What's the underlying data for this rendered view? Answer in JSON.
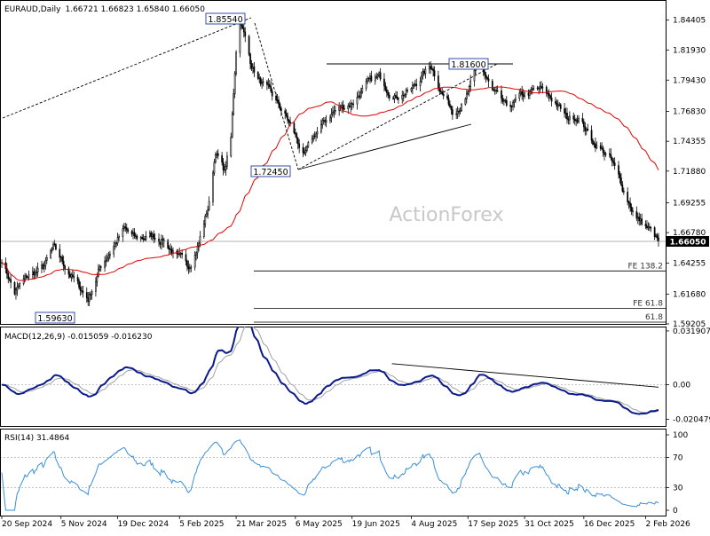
{
  "header": {
    "symbol": "EURAUD,Daily",
    "ohlc": "1.66721 1.66823 1.65840 1.66050"
  },
  "watermark": "ActionForex",
  "colors": {
    "candle": "#000000",
    "ma": "#e00000",
    "macd_line": "#0a1a8c",
    "signal_line": "#a0a0a0",
    "rsi_line": "#3a8fd8",
    "level_line": "#9a9a9a",
    "grid_dotted": "#b0b0b0",
    "axis": "#000000",
    "price_box": "#ffffff"
  },
  "chart_data": [
    {
      "type": "candlestick",
      "title": "EURAUD,Daily",
      "x_tick_labels": [
        "20 Sep 2024",
        "5 Nov 2024",
        "19 Dec 2024",
        "5 Feb 2025",
        "21 Mar 2025",
        "6 May 2025",
        "19 Jun 2025",
        "4 Aug 2025",
        "17 Sep 2025",
        "31 Oct 2025",
        "16 Dec 2025",
        "2 Feb 2026"
      ],
      "y_tick_labels": [
        "1.84405",
        "1.81930",
        "1.79430",
        "1.76830",
        "1.74355",
        "1.71880",
        "1.69255",
        "1.66780",
        "1.64255",
        "1.61680",
        "1.59205"
      ],
      "ylim": [
        1.59205,
        1.86
      ],
      "last_price_label": "1.66050",
      "annotations": [
        {
          "label": "1.85540",
          "value": 1.8554,
          "date": "2025-03-24"
        },
        {
          "label": "1.81600",
          "value": 1.816,
          "date": "2025-09-26"
        },
        {
          "label": "1.72450",
          "value": 1.7245,
          "date": "2025-05-13"
        },
        {
          "label": "1.59630",
          "value": 1.5963,
          "date": "2024-10-30"
        }
      ],
      "levels": [
        {
          "label": "FE 138.2",
          "value": 1.636
        },
        {
          "label": "FE 61.8",
          "value": 1.605
        },
        {
          "label": "61.8",
          "value": 1.5935
        }
      ],
      "close_series": {
        "start": "2024-09-20",
        "step_days": 1,
        "knots": [
          [
            "2024-09-20",
            1.646
          ],
          [
            "2024-09-30",
            1.618
          ],
          [
            "2024-10-10",
            1.631
          ],
          [
            "2024-10-22",
            1.638
          ],
          [
            "2024-10-30",
            1.654
          ],
          [
            "2024-11-08",
            1.64
          ],
          [
            "2024-11-18",
            1.624
          ],
          [
            "2024-11-26",
            1.613
          ],
          [
            "2024-12-05",
            1.638
          ],
          [
            "2024-12-16",
            1.658
          ],
          [
            "2024-12-24",
            1.67
          ],
          [
            "2025-01-02",
            1.662
          ],
          [
            "2025-01-14",
            1.665
          ],
          [
            "2025-01-24",
            1.662
          ],
          [
            "2025-02-04",
            1.646
          ],
          [
            "2025-02-12",
            1.64
          ],
          [
            "2025-02-20",
            1.66
          ],
          [
            "2025-02-28",
            1.692
          ],
          [
            "2025-03-05",
            1.736
          ],
          [
            "2025-03-12",
            1.718
          ],
          [
            "2025-03-17",
            1.745
          ],
          [
            "2025-03-21",
            1.82
          ],
          [
            "2025-03-24",
            1.848
          ],
          [
            "2025-04-01",
            1.81
          ],
          [
            "2025-04-08",
            1.794
          ],
          [
            "2025-04-18",
            1.78
          ],
          [
            "2025-04-28",
            1.765
          ],
          [
            "2025-05-06",
            1.748
          ],
          [
            "2025-05-13",
            1.73
          ],
          [
            "2025-05-22",
            1.75
          ],
          [
            "2025-06-04",
            1.768
          ],
          [
            "2025-06-19",
            1.776
          ],
          [
            "2025-06-30",
            1.79
          ],
          [
            "2025-07-10",
            1.796
          ],
          [
            "2025-07-22",
            1.782
          ],
          [
            "2025-08-04",
            1.786
          ],
          [
            "2025-08-12",
            1.798
          ],
          [
            "2025-08-20",
            1.806
          ],
          [
            "2025-08-28",
            1.784
          ],
          [
            "2025-09-05",
            1.77
          ],
          [
            "2025-09-15",
            1.778
          ],
          [
            "2025-09-26",
            1.808
          ],
          [
            "2025-10-06",
            1.784
          ],
          [
            "2025-10-17",
            1.77
          ],
          [
            "2025-10-31",
            1.782
          ],
          [
            "2025-11-12",
            1.786
          ],
          [
            "2025-11-24",
            1.776
          ],
          [
            "2025-12-03",
            1.762
          ],
          [
            "2025-12-12",
            1.765
          ],
          [
            "2025-12-22",
            1.745
          ],
          [
            "2026-01-05",
            1.73
          ],
          [
            "2026-01-15",
            1.705
          ],
          [
            "2026-01-26",
            1.68
          ],
          [
            "2026-02-05",
            1.67
          ],
          [
            "2026-02-12",
            1.6605
          ]
        ]
      }
    },
    {
      "type": "line",
      "title": "MACD(12,26,9) -0.015059 -0.016230",
      "y_tick_labels": [
        "0.031907",
        "0.00",
        "-0.020479"
      ],
      "ylim": [
        -0.0245,
        0.0345
      ],
      "series_names": [
        "MACD",
        "Signal"
      ],
      "trendline": {
        "from": [
          "2025-07-20",
          0.0125
        ],
        "to": [
          "2026-02-12",
          -0.0015
        ]
      }
    },
    {
      "type": "line",
      "title": "RSI(14) 31.4864",
      "y_tick_labels": [
        "100",
        "70",
        "30",
        "0"
      ],
      "ylim": [
        0,
        100
      ],
      "levels": [
        70,
        30
      ]
    }
  ]
}
